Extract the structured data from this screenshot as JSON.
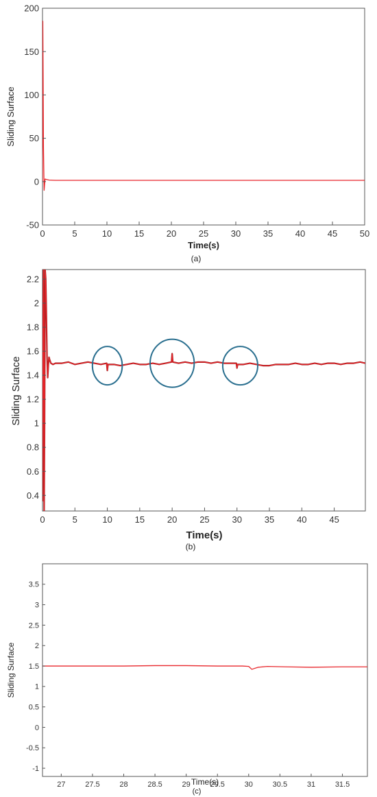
{
  "chart_data": [
    {
      "type": "line",
      "panel_label": "(a)",
      "xlabel": "Time(s)",
      "ylabel": "Sliding Surface",
      "xlim": [
        0,
        50
      ],
      "ylim": [
        -50,
        200
      ],
      "xticks": [
        "0",
        "5",
        "10",
        "15",
        "20",
        "25",
        "30",
        "35",
        "40",
        "45",
        "50"
      ],
      "yticks": [
        "-50",
        "0",
        "50",
        "100",
        "150",
        "200"
      ],
      "line_color": "#e8262b",
      "series": [
        {
          "x": [
            0,
            0.05,
            0.1,
            0.15,
            0.25,
            0.4,
            0.6,
            1,
            2,
            5,
            10,
            15,
            20,
            25,
            30,
            35,
            40,
            45,
            50
          ],
          "y": [
            0,
            185,
            120,
            40,
            -10,
            3,
            2.5,
            1.8,
            1.5,
            1.5,
            1.5,
            1.5,
            1.5,
            1.5,
            1.5,
            1.5,
            1.5,
            1.5,
            1.5
          ]
        }
      ]
    },
    {
      "type": "line",
      "panel_label": "(b)",
      "xlabel": "Time(s)",
      "ylabel": "Sliding Surface",
      "xlim": [
        0,
        49.8
      ],
      "ylim": [
        0.27,
        2.28
      ],
      "xticks": [
        "0",
        "5",
        "10",
        "15",
        "20",
        "25",
        "30",
        "35",
        "40",
        "45"
      ],
      "yticks": [
        "0.4",
        "0.6",
        "0.8",
        "1",
        "1.2",
        "1.4",
        "1.6",
        "1.8",
        "2",
        "2.2"
      ],
      "line_color": "#e8262b",
      "dark_line_color": "#8b1a1a",
      "highlight_color": "#2a6f8f",
      "highlights": [
        {
          "cx": 10,
          "cy": 1.48,
          "rx": 2.3,
          "ry": 0.16
        },
        {
          "cx": 20,
          "cy": 1.5,
          "rx": 3.4,
          "ry": 0.2
        },
        {
          "cx": 30.5,
          "cy": 1.48,
          "rx": 2.7,
          "ry": 0.16
        }
      ],
      "series": [
        {
          "x": [
            0,
            0.08,
            0.15,
            0.25,
            0.32,
            0.4,
            0.5,
            0.6,
            0.7,
            0.8,
            0.9,
            1.0,
            1.1,
            1.3,
            1.6,
            2,
            3,
            4,
            5,
            6,
            7,
            8,
            9,
            9.9,
            10.0,
            10.1,
            11,
            12,
            13,
            14,
            15,
            16,
            17,
            18,
            19,
            19.9,
            20.0,
            20.1,
            21,
            22,
            23,
            24,
            25,
            26,
            27,
            28,
            29,
            29.9,
            30.0,
            30.1,
            31,
            32,
            33,
            34,
            35,
            36,
            37,
            38,
            39,
            40,
            41,
            42,
            43,
            44,
            45,
            46,
            47,
            48,
            49,
            49.8
          ],
          "y": [
            0.35,
            1.8,
            2.28,
            0.27,
            1.0,
            2.28,
            2.2,
            1.9,
            1.55,
            1.38,
            1.48,
            1.55,
            1.53,
            1.5,
            1.49,
            1.5,
            1.5,
            1.51,
            1.49,
            1.5,
            1.51,
            1.5,
            1.49,
            1.5,
            1.44,
            1.49,
            1.49,
            1.48,
            1.49,
            1.5,
            1.49,
            1.49,
            1.5,
            1.49,
            1.5,
            1.51,
            1.58,
            1.51,
            1.5,
            1.51,
            1.5,
            1.51,
            1.51,
            1.5,
            1.51,
            1.5,
            1.5,
            1.5,
            1.46,
            1.49,
            1.49,
            1.5,
            1.49,
            1.48,
            1.48,
            1.49,
            1.49,
            1.49,
            1.5,
            1.49,
            1.49,
            1.5,
            1.49,
            1.5,
            1.5,
            1.49,
            1.5,
            1.5,
            1.51,
            1.5
          ]
        }
      ]
    },
    {
      "type": "line",
      "panel_label": "(c)",
      "xlabel": "Time(s)",
      "ylabel": "Sliding Surface",
      "xlim": [
        26.7,
        31.9
      ],
      "ylim": [
        -1.2,
        4
      ],
      "xticks": [
        "27",
        "27.5",
        "28",
        "28.5",
        "29",
        "29.5",
        "30",
        "30.5",
        "31",
        "31.5"
      ],
      "yticks": [
        "-1",
        "-0.5",
        "0",
        "0.5",
        "1",
        "1.5",
        "2",
        "2.5",
        "3",
        "3.5"
      ],
      "line_color": "#e8262b",
      "series": [
        {
          "x": [
            26.7,
            27.5,
            28,
            28.5,
            29,
            29.5,
            29.9,
            30.0,
            30.05,
            30.15,
            30.3,
            30.6,
            31,
            31.5,
            31.9
          ],
          "y": [
            1.5,
            1.5,
            1.5,
            1.51,
            1.51,
            1.5,
            1.5,
            1.49,
            1.42,
            1.47,
            1.49,
            1.48,
            1.47,
            1.48,
            1.48
          ]
        }
      ]
    }
  ]
}
